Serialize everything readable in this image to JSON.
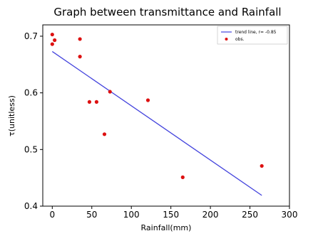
{
  "chart_data": {
    "type": "scatter",
    "title": "Graph between transmittance and Rainfall",
    "xlabel": "Rainfall(mm)",
    "ylabel": "τ(unitless)",
    "xlim": [
      -12,
      300
    ],
    "ylim": [
      0.4,
      0.72
    ],
    "xticks": [
      0,
      50,
      100,
      150,
      200,
      250,
      300
    ],
    "yticks": [
      0.4,
      0.5,
      0.6,
      0.7
    ],
    "xtick_labels": [
      "0",
      "50",
      "100",
      "150",
      "200",
      "250",
      "300"
    ],
    "ytick_labels": [
      "0.4",
      "0.5",
      "0.6",
      "0.7"
    ],
    "grid": false,
    "legend_position": "top-right",
    "series": [
      {
        "name": "trend line, r= -0.85",
        "kind": "line",
        "color": "#4444dd",
        "x": [
          0,
          265
        ],
        "y": [
          0.673,
          0.419
        ]
      },
      {
        "name": "obs.",
        "kind": "scatter",
        "color": "#dd1111",
        "x": [
          0,
          0,
          3,
          35,
          35,
          47,
          56,
          66,
          73,
          121,
          165,
          265
        ],
        "y": [
          0.703,
          0.686,
          0.693,
          0.695,
          0.664,
          0.584,
          0.584,
          0.527,
          0.602,
          0.587,
          0.451,
          0.471
        ]
      }
    ]
  }
}
